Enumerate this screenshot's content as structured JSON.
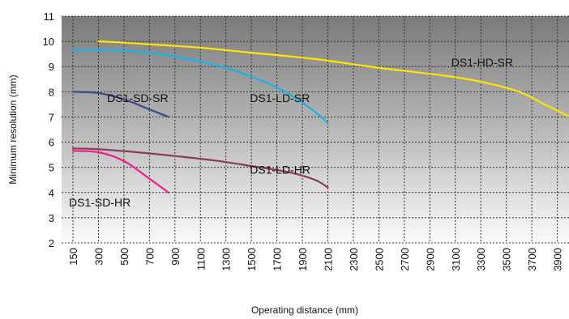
{
  "chart_data": {
    "type": "line",
    "xlabel": "Operating distance (mm)",
    "ylabel": "Minimum resolution (mm)",
    "xlim": [
      150,
      4000
    ],
    "ylim": [
      2,
      11
    ],
    "x_tick_labels": [
      "150",
      "300",
      "500",
      "700",
      "900",
      "1100",
      "1300",
      "1500",
      "1700",
      "1900",
      "2100",
      "2300",
      "2500",
      "2700",
      "2900",
      "3100",
      "3300",
      "3500",
      "3700",
      "3900"
    ],
    "y_tick_labels": [
      "2",
      "3",
      "4",
      "5",
      "6",
      "7",
      "8",
      "9",
      "10",
      "11"
    ],
    "grid": true,
    "background": "gradient dark grey (top) to light grey (bottom)",
    "series": [
      {
        "name": "DS1-HD-SR",
        "color": "#ffe600",
        "points": [
          [
            300,
            10.0
          ],
          [
            500,
            9.95
          ],
          [
            800,
            9.85
          ],
          [
            1100,
            9.75
          ],
          [
            1500,
            9.55
          ],
          [
            2000,
            9.3
          ],
          [
            2500,
            8.95
          ],
          [
            3000,
            8.65
          ],
          [
            3300,
            8.4
          ],
          [
            3600,
            8.0
          ],
          [
            3800,
            7.5
          ],
          [
            4000,
            7.0
          ]
        ]
      },
      {
        "name": "DS1-LD-SR",
        "color": "#1ab2e8",
        "points": [
          [
            150,
            9.65
          ],
          [
            400,
            9.65
          ],
          [
            700,
            9.55
          ],
          [
            1000,
            9.3
          ],
          [
            1300,
            8.95
          ],
          [
            1600,
            8.4
          ],
          [
            1800,
            7.9
          ],
          [
            2000,
            7.2
          ],
          [
            2100,
            6.75
          ]
        ]
      },
      {
        "name": "DS1-SD-SR",
        "color": "#3d4a8c",
        "points": [
          [
            150,
            8.0
          ],
          [
            300,
            7.95
          ],
          [
            500,
            7.7
          ],
          [
            700,
            7.3
          ],
          [
            850,
            7.0
          ]
        ]
      },
      {
        "name": "DS1-LD-HR",
        "color": "#8b3a5a",
        "points": [
          [
            150,
            5.75
          ],
          [
            300,
            5.72
          ],
          [
            600,
            5.6
          ],
          [
            900,
            5.45
          ],
          [
            1200,
            5.28
          ],
          [
            1500,
            5.05
          ],
          [
            1800,
            4.8
          ],
          [
            2000,
            4.5
          ],
          [
            2100,
            4.2
          ]
        ]
      },
      {
        "name": "DS1-SD-HR",
        "color": "#ee1e8c",
        "points": [
          [
            150,
            5.65
          ],
          [
            300,
            5.6
          ],
          [
            500,
            5.25
          ],
          [
            700,
            4.55
          ],
          [
            850,
            4.0
          ]
        ]
      }
    ]
  }
}
